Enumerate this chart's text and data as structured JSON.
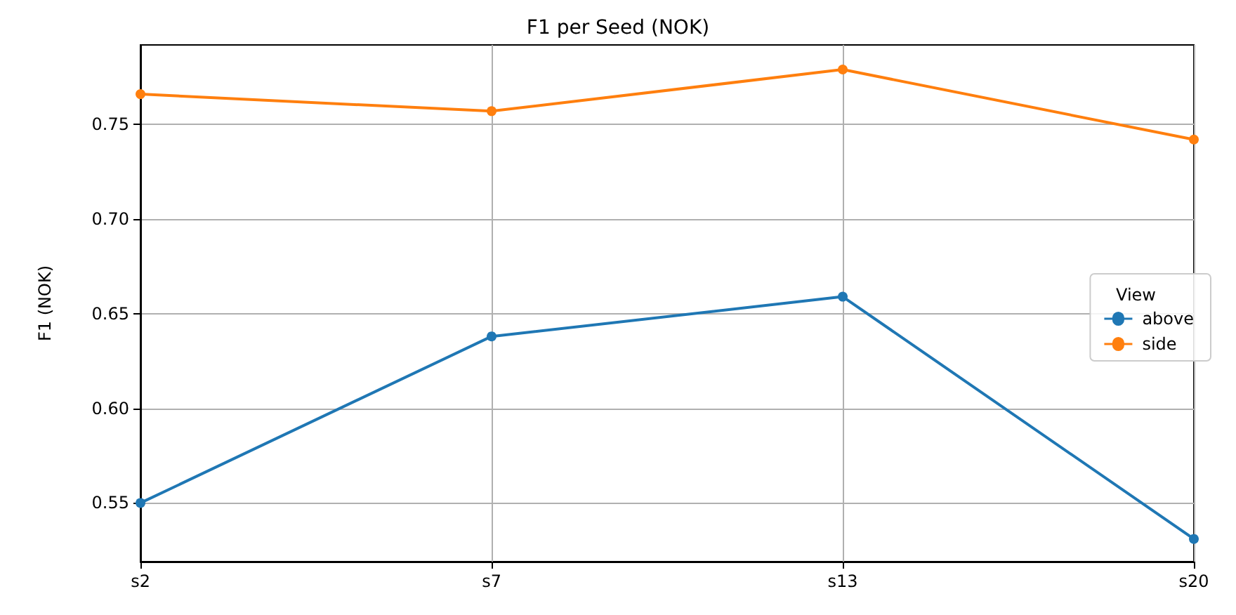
{
  "chart_data": {
    "type": "line",
    "title": "F1 per Seed (NOK)",
    "ylabel": "F1 (NOK)",
    "legend_title": "View",
    "categories": [
      "s2",
      "s7",
      "s13",
      "s20"
    ],
    "series": [
      {
        "name": "above",
        "color": "#1f77b4",
        "values": [
          0.55,
          0.638,
          0.659,
          0.531
        ]
      },
      {
        "name": "side",
        "color": "#ff7f0e",
        "values": [
          0.766,
          0.757,
          0.779,
          0.742
        ]
      }
    ],
    "ylim": [
      0.519,
      0.792
    ],
    "yticks": [
      {
        "value": 0.55,
        "label": "0.55"
      },
      {
        "value": 0.6,
        "label": "0.60"
      },
      {
        "value": 0.65,
        "label": "0.65"
      },
      {
        "value": 0.7,
        "label": "0.70"
      },
      {
        "value": 0.75,
        "label": "0.75"
      }
    ],
    "grid": true,
    "legend": "right",
    "marker": "circle",
    "line_style": "solid"
  }
}
